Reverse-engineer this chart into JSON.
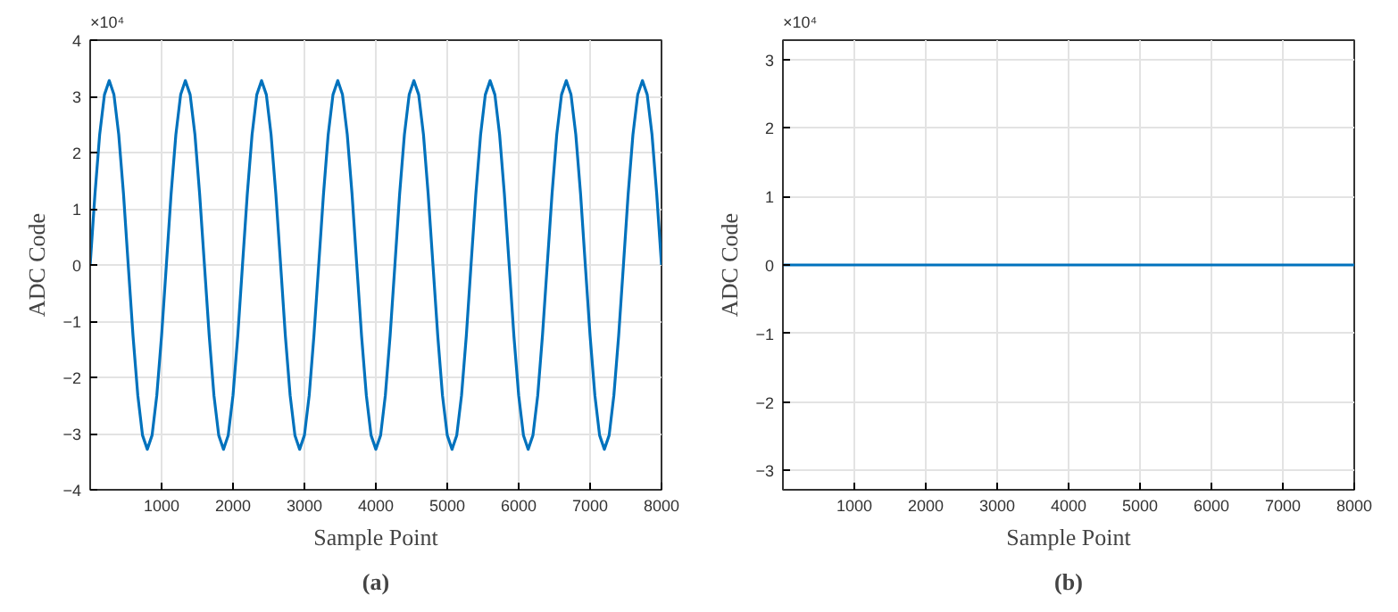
{
  "chart_data": [
    {
      "type": "line",
      "xlabel": "Sample Point",
      "ylabel": "ADC Code",
      "annotations": [
        "×10⁴",
        "(a)"
      ],
      "x": [
        0,
        67,
        133,
        200,
        267,
        333,
        400,
        467,
        533,
        600,
        667,
        733,
        800,
        867,
        933,
        1000,
        1067,
        1133,
        1200,
        1267,
        1333,
        1400,
        1467,
        1533,
        1600,
        1667,
        1733,
        1800,
        1867,
        1933,
        2000,
        2067,
        2133,
        2200,
        2267,
        2333,
        2400,
        2467,
        2533,
        2600,
        2667,
        2733,
        2800,
        2867,
        2933,
        3000,
        3067,
        3133,
        3200,
        3267,
        3333,
        3400,
        3467,
        3533,
        3600,
        3667,
        3733,
        3800,
        3867,
        3933,
        4000,
        4067,
        4133,
        4200,
        4267,
        4333,
        4400,
        4467,
        4533,
        4600,
        4667,
        4733,
        4800,
        4867,
        4933,
        5000,
        5067,
        5133,
        5200,
        5267,
        5333,
        5400,
        5467,
        5533,
        5600,
        5667,
        5733,
        5800,
        5867,
        5933,
        6000,
        6067,
        6133,
        6200,
        6267,
        6333,
        6400,
        6467,
        6533,
        6600,
        6667,
        6733,
        6800,
        6867,
        6933,
        7000,
        7067,
        7133,
        7200,
        7267,
        7333,
        7400,
        7467,
        7533,
        7600,
        7667,
        7733,
        7800,
        7867,
        7933,
        8000
      ],
      "series": [
        {
          "color": "#0072bd",
          "values": [
            0,
            1.26,
            2.32,
            3.03,
            3.28,
            3.03,
            2.32,
            1.26,
            0,
            -1.26,
            -2.32,
            -3.03,
            -3.28,
            -3.03,
            -2.32,
            -1.26,
            0,
            1.26,
            2.32,
            3.03,
            3.28,
            3.03,
            2.32,
            1.26,
            0,
            -1.26,
            -2.32,
            -3.03,
            -3.28,
            -3.03,
            -2.32,
            -1.26,
            0,
            1.26,
            2.32,
            3.03,
            3.28,
            3.03,
            2.32,
            1.26,
            0,
            -1.26,
            -2.32,
            -3.03,
            -3.28,
            -3.03,
            -2.32,
            -1.26,
            0,
            1.26,
            2.32,
            3.03,
            3.28,
            3.03,
            2.32,
            1.26,
            0,
            -1.26,
            -2.32,
            -3.03,
            -3.28,
            -3.03,
            -2.32,
            -1.26,
            0,
            1.26,
            2.32,
            3.03,
            3.28,
            3.03,
            2.32,
            1.26,
            0,
            -1.26,
            -2.32,
            -3.03,
            -3.28,
            -3.03,
            -2.32,
            -1.26,
            0,
            1.26,
            2.32,
            3.03,
            3.28,
            3.03,
            2.32,
            1.26,
            0,
            -1.26,
            -2.32,
            -3.03,
            -3.28,
            -3.03,
            -2.32,
            -1.26,
            0,
            1.26,
            2.32,
            3.03,
            3.28,
            3.03,
            2.32,
            1.26,
            0,
            -1.26,
            -2.32,
            -3.03,
            -3.28,
            -3.03,
            -2.32,
            -1.26,
            0,
            1.26,
            2.32,
            3.03,
            3.28,
            3.03,
            2.32,
            1.26,
            0
          ]
        }
      ],
      "xlim": [
        0,
        8000
      ],
      "xticks": [
        1000,
        2000,
        3000,
        4000,
        5000,
        6000,
        7000,
        8000
      ],
      "ylim": [
        -4,
        4
      ],
      "yticks": [
        -4,
        -3,
        -2,
        -1,
        0,
        1,
        2,
        3,
        4
      ],
      "grid": true
    },
    {
      "type": "line",
      "xlabel": "Sample Point",
      "ylabel": "ADC Code",
      "annotations": [
        "×10⁴",
        "(b)"
      ],
      "x": [
        0,
        8000
      ],
      "series": [
        {
          "color": "#0072bd",
          "values": [
            0,
            0
          ]
        }
      ],
      "xlim": [
        0,
        8000
      ],
      "xticks": [
        1000,
        2000,
        3000,
        4000,
        5000,
        6000,
        7000,
        8000
      ],
      "ylim": [
        -3.28,
        3.28
      ],
      "yticks": [
        -3,
        -2,
        -1,
        0,
        1,
        2,
        3
      ],
      "grid": true
    }
  ]
}
